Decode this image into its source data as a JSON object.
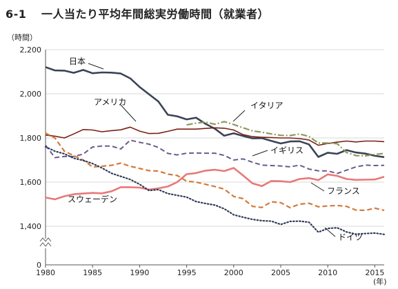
{
  "header": {
    "number": "6-1",
    "title": "一人当たり平均年間総実労働時間（就業者）"
  },
  "chart_data": {
    "type": "line",
    "title": "一人当たり平均年間総実労働時間（就業者）",
    "ylabel": "（時間）",
    "xlabel": "(年)",
    "ylim": [
      0,
      2200
    ],
    "xlim": [
      1980,
      2016
    ],
    "axis_break": true,
    "y_ticks": [
      "0",
      "1,400",
      "1,600",
      "1,800",
      "2,000",
      "2,200"
    ],
    "x_ticks": [
      "1980",
      "1985",
      "1990",
      "1995",
      "2000",
      "2005",
      "2010",
      "2015"
    ],
    "grid": "horizontal",
    "colors": {
      "japan": "#3a4356",
      "usa": "#7a1f12",
      "italy": "#8a9a5b",
      "uk": "#6a5a8e",
      "france": "#e87878",
      "germany_dashed": "#d27a3a",
      "germany_dotted": "#2f3a55"
    },
    "series": [
      {
        "key": "japan",
        "name": "日本",
        "style": "solid",
        "width": 2.6,
        "x": [
          1980,
          1981,
          1982,
          1983,
          1984,
          1985,
          1986,
          1987,
          1988,
          1989,
          1990,
          1991,
          1992,
          1993,
          1994,
          1995,
          1996,
          1997,
          1998,
          1999,
          2000,
          2001,
          2002,
          2003,
          2004,
          2005,
          2006,
          2007,
          2008,
          2009,
          2010,
          2011,
          2012,
          2013,
          2014,
          2015,
          2016
        ],
        "values": [
          2121,
          2106,
          2105,
          2095,
          2108,
          2093,
          2097,
          2096,
          2092,
          2070,
          2031,
          1998,
          1965,
          1905,
          1898,
          1884,
          1892,
          1864,
          1842,
          1810,
          1821,
          1809,
          1798,
          1799,
          1787,
          1775,
          1784,
          1785,
          1771,
          1714,
          1733,
          1728,
          1745,
          1734,
          1729,
          1719,
          1713
        ]
      },
      {
        "key": "usa",
        "name": "アメリカ",
        "style": "solid",
        "width": 1.6,
        "x": [
          1980,
          1981,
          1982,
          1983,
          1984,
          1985,
          1986,
          1987,
          1988,
          1989,
          1990,
          1991,
          1992,
          1993,
          1994,
          1995,
          1996,
          1997,
          1998,
          1999,
          2000,
          2001,
          2002,
          2003,
          2004,
          2005,
          2006,
          2007,
          2008,
          2009,
          2010,
          2011,
          2012,
          2013,
          2014,
          2015,
          2016
        ],
        "values": [
          1813,
          1808,
          1800,
          1818,
          1838,
          1836,
          1828,
          1833,
          1837,
          1849,
          1831,
          1820,
          1821,
          1830,
          1840,
          1840,
          1840,
          1843,
          1846,
          1844,
          1836,
          1815,
          1806,
          1803,
          1802,
          1800,
          1800,
          1797,
          1791,
          1767,
          1775,
          1781,
          1786,
          1782,
          1786,
          1786,
          1783
        ]
      },
      {
        "key": "italy",
        "name": "イタリア",
        "style": "dashdot",
        "width": 2.2,
        "x": [
          1995,
          1996,
          1997,
          1998,
          1999,
          2000,
          2001,
          2002,
          2003,
          2004,
          2005,
          2006,
          2007,
          2008,
          2009,
          2010,
          2011,
          2012,
          2013,
          2014,
          2015,
          2016
        ],
        "values": [
          1859,
          1867,
          1872,
          1862,
          1874,
          1861,
          1846,
          1832,
          1826,
          1818,
          1812,
          1811,
          1818,
          1807,
          1777,
          1777,
          1774,
          1734,
          1720,
          1719,
          1725,
          1730
        ]
      },
      {
        "key": "uk",
        "name": "イギリス",
        "style": "dashed",
        "width": 2.0,
        "x": [
          1980,
          1981,
          1982,
          1983,
          1984,
          1985,
          1986,
          1987,
          1988,
          1989,
          1990,
          1991,
          1992,
          1993,
          1994,
          1995,
          1996,
          1997,
          1998,
          1999,
          2000,
          2001,
          2002,
          2003,
          2004,
          2005,
          2006,
          2007,
          2008,
          2009,
          2010,
          2011,
          2012,
          2013,
          2014,
          2015,
          2016
        ],
        "values": [
          1767,
          1711,
          1716,
          1716,
          1727,
          1759,
          1763,
          1763,
          1750,
          1790,
          1780,
          1772,
          1757,
          1730,
          1723,
          1731,
          1732,
          1731,
          1731,
          1721,
          1700,
          1705,
          1690,
          1677,
          1675,
          1673,
          1669,
          1677,
          1659,
          1651,
          1651,
          1639,
          1654,
          1669,
          1677,
          1675,
          1676
        ]
      },
      {
        "key": "france",
        "name": "フランス",
        "style": "solid",
        "width": 2.6,
        "x": [
          1980,
          1981,
          1982,
          1983,
          1984,
          1985,
          1986,
          1987,
          1988,
          1989,
          1990,
          1991,
          1992,
          1993,
          1994,
          1995,
          1996,
          1997,
          1998,
          1999,
          2000,
          2001,
          2002,
          2003,
          2004,
          2005,
          2006,
          2007,
          2008,
          2009,
          2010,
          2011,
          2012,
          2013,
          2014,
          2015,
          2016
        ],
        "values": [
          1530,
          1522,
          1536,
          1545,
          1548,
          1551,
          1549,
          1558,
          1577,
          1577,
          1575,
          1566,
          1572,
          1580,
          1600,
          1636,
          1641,
          1652,
          1656,
          1650,
          1664,
          1630,
          1594,
          1582,
          1605,
          1604,
          1600,
          1614,
          1618,
          1609,
          1635,
          1628,
          1614,
          1610,
          1611,
          1612,
          1624
        ]
      },
      {
        "key": "germany_dashed",
        "name": "",
        "style": "dashed",
        "width": 2.2,
        "x": [
          1980,
          1981,
          1982,
          1983,
          1984,
          1985,
          1986,
          1987,
          1988,
          1989,
          1990,
          1991,
          1992,
          1993,
          1994,
          1995,
          1996,
          1997,
          1998,
          1999,
          2000,
          2001,
          2002,
          2003,
          2004,
          2005,
          2006,
          2007,
          2008,
          2009,
          2010,
          2011,
          2012,
          2013,
          2014,
          2015,
          2016
        ],
        "values": [
          1822,
          1800,
          1740,
          1720,
          1700,
          1668,
          1672,
          1676,
          1686,
          1672,
          1662,
          1652,
          1650,
          1636,
          1630,
          1604,
          1600,
          1590,
          1580,
          1568,
          1535,
          1525,
          1490,
          1485,
          1511,
          1507,
          1484,
          1500,
          1504,
          1488,
          1492,
          1494,
          1490,
          1473,
          1472,
          1482,
          1472
        ]
      },
      {
        "key": "germany_dotted",
        "name": "ドイツ",
        "style": "dotted",
        "width": 2.2,
        "x": [
          1980,
          1981,
          1982,
          1983,
          1984,
          1985,
          1986,
          1987,
          1988,
          1989,
          1990,
          1991,
          1992,
          1993,
          1994,
          1995,
          1996,
          1997,
          1998,
          1999,
          2000,
          2001,
          2002,
          2003,
          2004,
          2005,
          2006,
          2007,
          2008,
          2009,
          2010,
          2011,
          2012,
          2013,
          2014,
          2015,
          2016
        ],
        "values": [
          1760,
          1740,
          1728,
          1708,
          1698,
          1684,
          1664,
          1640,
          1626,
          1612,
          1590,
          1562,
          1566,
          1548,
          1540,
          1532,
          1512,
          1503,
          1496,
          1479,
          1452,
          1441,
          1431,
          1425,
          1423,
          1408,
          1422,
          1423,
          1418,
          1373,
          1390,
          1393,
          1374,
          1364,
          1367,
          1369,
          1363
        ]
      }
    ],
    "labels": {
      "japan": "日本",
      "usa": "アメリカ",
      "italy": "イタリア",
      "uk": "イギリス",
      "france": "フランス",
      "germany": "ドイツ",
      "france_curve": "スウェーデン"
    }
  }
}
